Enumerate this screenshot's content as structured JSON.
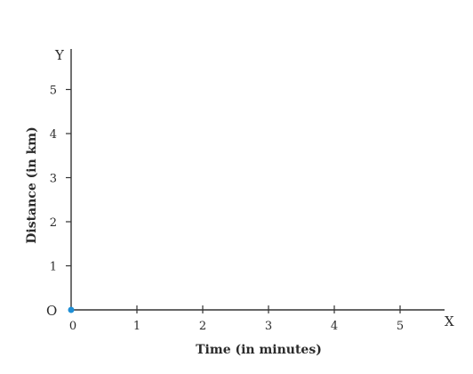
{
  "chart_data": {
    "type": "line",
    "title": "",
    "xlabel": "Time (in minutes)",
    "ylabel": "Distance (in km)",
    "x_axis_letter": "X",
    "y_axis_letter": "Y",
    "origin_label": "O",
    "xlim": [
      0,
      5.6
    ],
    "ylim": [
      0,
      5.9
    ],
    "x_ticks": [
      0,
      1,
      2,
      3,
      4,
      5
    ],
    "x_tick_labels": [
      "0",
      "1",
      "2",
      "3",
      "4",
      "5"
    ],
    "y_ticks": [
      1,
      2,
      3,
      4,
      5
    ],
    "y_tick_labels": [
      "1",
      "2",
      "3",
      "4",
      "5"
    ],
    "grid": false,
    "series": [
      {
        "x": [
          0
        ],
        "y": [
          0
        ]
      }
    ],
    "colors": {
      "axis": "#333333",
      "text": "#2b2b2b",
      "point": "#1f8fd6"
    }
  }
}
